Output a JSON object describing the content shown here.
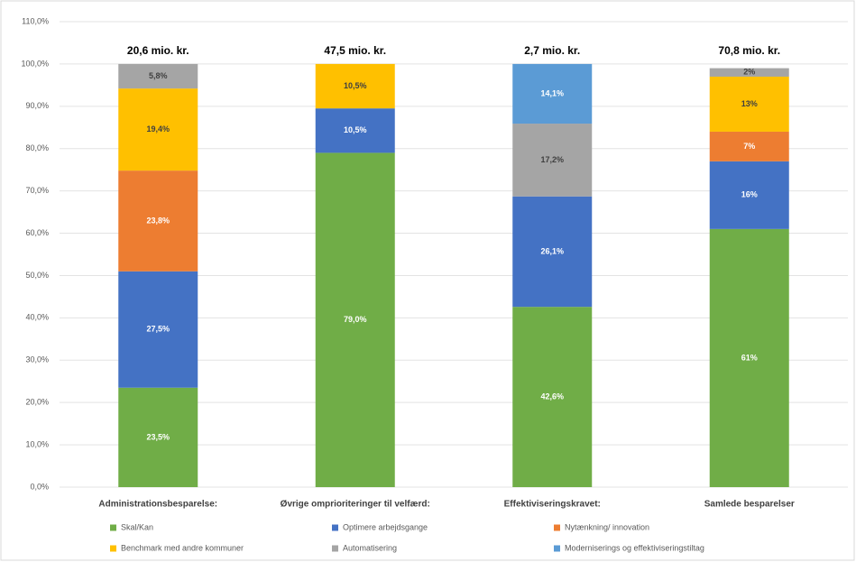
{
  "chart_data": {
    "type": "stacked_bar",
    "categories": [
      "Administrationsbesparelse:",
      "Øvrige omprioriteringer til velfærd:",
      "Effektiviseringskravet:",
      "Samlede besparelser"
    ],
    "annotations": [
      "20,6 mio. kr.",
      "47,5 mio. kr.",
      "2,7 mio. kr.",
      "70,8 mio. kr."
    ],
    "series": [
      {
        "name": "Skal/Kan",
        "color": "#70ad47",
        "values": [
          23.5,
          79.0,
          42.6,
          61
        ],
        "value_labels": [
          "23,5%",
          "79,0%",
          "42,6%",
          "61%"
        ]
      },
      {
        "name": "Optimere arbejdsgange",
        "color": "#4472c4",
        "values": [
          27.5,
          10.5,
          26.1,
          16
        ],
        "value_labels": [
          "27,5%",
          "10,5%",
          "26,1%",
          "16%"
        ]
      },
      {
        "name": "Nytænkning/ innovation",
        "color": "#ed7d31",
        "values": [
          23.8,
          null,
          null,
          7
        ],
        "value_labels": [
          "23,8%",
          null,
          null,
          "7%"
        ]
      },
      {
        "name": "Benchmark med andre kommuner",
        "color": "#ffc000",
        "values": [
          19.4,
          10.5,
          null,
          13
        ],
        "value_labels": [
          "19,4%",
          "10,5%",
          null,
          "13%"
        ]
      },
      {
        "name": "Automatisering",
        "color": "#a5a5a5",
        "values": [
          5.8,
          null,
          17.2,
          2
        ],
        "value_labels": [
          "5,8%",
          null,
          "17,2%",
          "2%"
        ]
      },
      {
        "name": "Moderniserings og effektiviseringstiltag",
        "color": "#5b9bd5",
        "values": [
          null,
          null,
          14.1,
          null
        ],
        "value_labels": [
          null,
          null,
          "14,1%",
          null
        ]
      }
    ],
    "ylim": [
      0,
      110
    ],
    "yticks": [
      {
        "value": 0,
        "label": "0,0%"
      },
      {
        "value": 10,
        "label": "10,0%"
      },
      {
        "value": 20,
        "label": "20,0%"
      },
      {
        "value": 30,
        "label": "30,0%"
      },
      {
        "value": 40,
        "label": "40,0%"
      },
      {
        "value": 50,
        "label": "50,0%"
      },
      {
        "value": 60,
        "label": "60,0%"
      },
      {
        "value": 70,
        "label": "70,0%"
      },
      {
        "value": 80,
        "label": "80,0%"
      },
      {
        "value": 90,
        "label": "90,0%"
      },
      {
        "value": 100,
        "label": "100,0%"
      },
      {
        "value": 110,
        "label": "110,0%"
      }
    ],
    "grid": true
  }
}
